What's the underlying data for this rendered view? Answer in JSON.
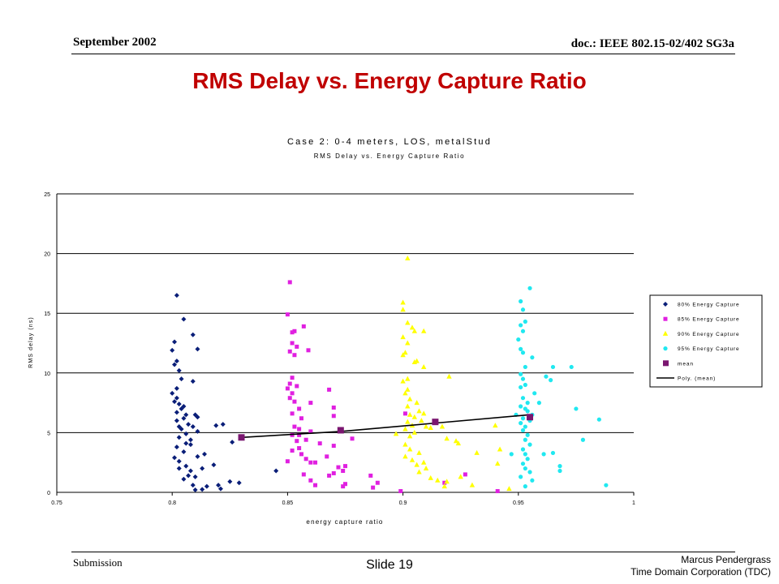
{
  "header": {
    "date": "September 2002",
    "doc": "doc.: IEEE 802.15-02/402 SG3a"
  },
  "slide_title": "RMS Delay vs. Energy Capture Ratio",
  "footer": {
    "left": "Submission",
    "center": "Slide 19",
    "author": "Marcus Pendergrass",
    "org": "Time Domain Corporation (TDC)"
  },
  "chart_data": {
    "type": "scatter",
    "title": "Case 2: 0-4 meters, LOS, metalStud",
    "subtitle": "RMS Delay vs. Energy Capture Ratio",
    "xlabel": "energy capture ratio",
    "ylabel": "RMS delay (ns)",
    "xlim": [
      0.75,
      1
    ],
    "ylim": [
      0,
      25
    ],
    "x_ticks": [
      "0.75",
      "0.8",
      "0.85",
      "0.9",
      "0.95",
      "1"
    ],
    "y_ticks": [
      "0",
      "5",
      "10",
      "15",
      "20",
      "25"
    ],
    "grid": "horizontal",
    "legend_position": "right",
    "series": [
      {
        "name": "80% Energy Capture",
        "marker": "diamond",
        "color": "#0a1e78",
        "points": [
          [
            0.802,
            16.5
          ],
          [
            0.805,
            14.5
          ],
          [
            0.809,
            13.2
          ],
          [
            0.811,
            12.0
          ],
          [
            0.801,
            12.6
          ],
          [
            0.8,
            11.9
          ],
          [
            0.802,
            11.0
          ],
          [
            0.801,
            10.7
          ],
          [
            0.803,
            10.2
          ],
          [
            0.804,
            9.5
          ],
          [
            0.809,
            9.3
          ],
          [
            0.802,
            8.7
          ],
          [
            0.8,
            8.3
          ],
          [
            0.802,
            7.9
          ],
          [
            0.801,
            7.6
          ],
          [
            0.803,
            7.4
          ],
          [
            0.805,
            7.2
          ],
          [
            0.804,
            7.0
          ],
          [
            0.802,
            6.7
          ],
          [
            0.806,
            6.5
          ],
          [
            0.81,
            6.5
          ],
          [
            0.805,
            6.2
          ],
          [
            0.802,
            6.0
          ],
          [
            0.807,
            5.7
          ],
          [
            0.811,
            6.3
          ],
          [
            0.803,
            5.5
          ],
          [
            0.804,
            5.3
          ],
          [
            0.809,
            5.5
          ],
          [
            0.811,
            5.1
          ],
          [
            0.819,
            5.6
          ],
          [
            0.822,
            5.7
          ],
          [
            0.806,
            4.9
          ],
          [
            0.803,
            4.6
          ],
          [
            0.808,
            4.4
          ],
          [
            0.806,
            4.1
          ],
          [
            0.802,
            3.8
          ],
          [
            0.805,
            3.4
          ],
          [
            0.801,
            2.9
          ],
          [
            0.803,
            2.6
          ],
          [
            0.811,
            3.0
          ],
          [
            0.814,
            3.2
          ],
          [
            0.806,
            2.2
          ],
          [
            0.808,
            1.8
          ],
          [
            0.813,
            2.0
          ],
          [
            0.807,
            1.4
          ],
          [
            0.805,
            1.1
          ],
          [
            0.81,
            1.3
          ],
          [
            0.818,
            2.3
          ],
          [
            0.826,
            4.2
          ],
          [
            0.825,
            0.9
          ],
          [
            0.829,
            0.8
          ],
          [
            0.82,
            0.6
          ],
          [
            0.813,
            0.25
          ],
          [
            0.821,
            0.3
          ],
          [
            0.81,
            0.2
          ],
          [
            0.803,
            2.0
          ],
          [
            0.809,
            0.6
          ],
          [
            0.815,
            0.5
          ],
          [
            0.808,
            4.0
          ],
          [
            0.845,
            1.8
          ]
        ]
      },
      {
        "name": "85% Energy Capture",
        "marker": "square",
        "color": "#e020e0",
        "points": [
          [
            0.851,
            17.6
          ],
          [
            0.85,
            14.9
          ],
          [
            0.852,
            13.4
          ],
          [
            0.853,
            13.5
          ],
          [
            0.857,
            13.9
          ],
          [
            0.852,
            12.5
          ],
          [
            0.854,
            12.2
          ],
          [
            0.851,
            11.8
          ],
          [
            0.853,
            11.5
          ],
          [
            0.859,
            11.9
          ],
          [
            0.852,
            9.6
          ],
          [
            0.851,
            9.1
          ],
          [
            0.854,
            8.9
          ],
          [
            0.85,
            8.7
          ],
          [
            0.852,
            8.3
          ],
          [
            0.851,
            7.9
          ],
          [
            0.853,
            7.6
          ],
          [
            0.86,
            7.5
          ],
          [
            0.855,
            7.0
          ],
          [
            0.868,
            8.6
          ],
          [
            0.87,
            7.1
          ],
          [
            0.852,
            6.6
          ],
          [
            0.856,
            6.2
          ],
          [
            0.87,
            6.4
          ],
          [
            0.853,
            5.5
          ],
          [
            0.855,
            5.3
          ],
          [
            0.86,
            5.1
          ],
          [
            0.873,
            5.2
          ],
          [
            0.878,
            4.5
          ],
          [
            0.852,
            4.8
          ],
          [
            0.854,
            4.3
          ],
          [
            0.858,
            4.4
          ],
          [
            0.864,
            4.1
          ],
          [
            0.87,
            3.9
          ],
          [
            0.855,
            3.7
          ],
          [
            0.852,
            3.5
          ],
          [
            0.856,
            3.2
          ],
          [
            0.858,
            2.8
          ],
          [
            0.86,
            2.5
          ],
          [
            0.867,
            3.0
          ],
          [
            0.862,
            2.5
          ],
          [
            0.875,
            2.2
          ],
          [
            0.874,
            1.8
          ],
          [
            0.87,
            1.6
          ],
          [
            0.868,
            1.4
          ],
          [
            0.857,
            1.5
          ],
          [
            0.86,
            1.0
          ],
          [
            0.862,
            0.6
          ],
          [
            0.874,
            0.5
          ],
          [
            0.886,
            1.4
          ],
          [
            0.889,
            0.8
          ],
          [
            0.887,
            0.4
          ],
          [
            0.85,
            2.6
          ],
          [
            0.855,
            4.8
          ],
          [
            0.872,
            2.1
          ],
          [
            0.875,
            0.7
          ],
          [
            0.899,
            0.1
          ],
          [
            0.901,
            6.6
          ],
          [
            0.918,
            0.8
          ],
          [
            0.927,
            1.5
          ],
          [
            0.941,
            0.1
          ]
        ]
      },
      {
        "name": "90% Energy Capture",
        "marker": "triangle",
        "color": "#ffff00",
        "points": [
          [
            0.902,
            19.6
          ],
          [
            0.9,
            15.9
          ],
          [
            0.9,
            15.3
          ],
          [
            0.902,
            14.2
          ],
          [
            0.904,
            13.8
          ],
          [
            0.905,
            13.5
          ],
          [
            0.909,
            13.5
          ],
          [
            0.9,
            13.0
          ],
          [
            0.902,
            12.5
          ],
          [
            0.901,
            11.7
          ],
          [
            0.9,
            11.5
          ],
          [
            0.906,
            11.0
          ],
          [
            0.905,
            10.9
          ],
          [
            0.909,
            10.5
          ],
          [
            0.902,
            9.5
          ],
          [
            0.9,
            9.3
          ],
          [
            0.902,
            8.6
          ],
          [
            0.901,
            8.3
          ],
          [
            0.903,
            7.8
          ],
          [
            0.906,
            7.5
          ],
          [
            0.902,
            7.2
          ],
          [
            0.907,
            6.8
          ],
          [
            0.903,
            6.5
          ],
          [
            0.905,
            6.3
          ],
          [
            0.908,
            6.0
          ],
          [
            0.902,
            5.9
          ],
          [
            0.904,
            5.6
          ],
          [
            0.91,
            5.5
          ],
          [
            0.912,
            5.4
          ],
          [
            0.917,
            5.5
          ],
          [
            0.901,
            5.3
          ],
          [
            0.905,
            5.0
          ],
          [
            0.897,
            4.9
          ],
          [
            0.903,
            4.7
          ],
          [
            0.919,
            4.5
          ],
          [
            0.923,
            4.3
          ],
          [
            0.924,
            4.1
          ],
          [
            0.901,
            4.0
          ],
          [
            0.903,
            3.6
          ],
          [
            0.907,
            3.3
          ],
          [
            0.932,
            3.3
          ],
          [
            0.901,
            3.0
          ],
          [
            0.904,
            2.7
          ],
          [
            0.909,
            2.5
          ],
          [
            0.906,
            2.3
          ],
          [
            0.91,
            2.0
          ],
          [
            0.907,
            1.7
          ],
          [
            0.912,
            1.2
          ],
          [
            0.915,
            1.0
          ],
          [
            0.919,
            0.9
          ],
          [
            0.918,
            0.5
          ],
          [
            0.925,
            1.3
          ],
          [
            0.93,
            0.6
          ],
          [
            0.94,
            5.6
          ],
          [
            0.942,
            3.6
          ],
          [
            0.941,
            2.4
          ],
          [
            0.946,
            0.3
          ],
          [
            0.92,
            9.7
          ],
          [
            0.909,
            6.6
          ]
        ]
      },
      {
        "name": "95% Energy Capture",
        "marker": "circle",
        "color": "#20e8f0",
        "points": [
          [
            0.955,
            17.1
          ],
          [
            0.951,
            16.0
          ],
          [
            0.952,
            15.3
          ],
          [
            0.951,
            14.0
          ],
          [
            0.953,
            14.3
          ],
          [
            0.952,
            13.5
          ],
          [
            0.95,
            12.8
          ],
          [
            0.951,
            12.0
          ],
          [
            0.952,
            11.7
          ],
          [
            0.956,
            11.3
          ],
          [
            0.953,
            10.5
          ],
          [
            0.951,
            9.9
          ],
          [
            0.952,
            9.5
          ],
          [
            0.962,
            9.7
          ],
          [
            0.964,
            9.4
          ],
          [
            0.953,
            9.0
          ],
          [
            0.951,
            8.8
          ],
          [
            0.957,
            8.3
          ],
          [
            0.952,
            7.9
          ],
          [
            0.954,
            7.5
          ],
          [
            0.951,
            7.2
          ],
          [
            0.953,
            7.0
          ],
          [
            0.954,
            6.8
          ],
          [
            0.956,
            6.5
          ],
          [
            0.959,
            7.5
          ],
          [
            0.952,
            6.2
          ],
          [
            0.955,
            6.0
          ],
          [
            0.951,
            5.8
          ],
          [
            0.953,
            5.5
          ],
          [
            0.952,
            5.2
          ],
          [
            0.954,
            4.8
          ],
          [
            0.953,
            4.4
          ],
          [
            0.955,
            4.0
          ],
          [
            0.952,
            3.6
          ],
          [
            0.953,
            3.2
          ],
          [
            0.954,
            2.8
          ],
          [
            0.952,
            2.4
          ],
          [
            0.953,
            2.0
          ],
          [
            0.955,
            1.7
          ],
          [
            0.951,
            1.3
          ],
          [
            0.956,
            1.0
          ],
          [
            0.953,
            0.5
          ],
          [
            0.961,
            3.2
          ],
          [
            0.965,
            3.3
          ],
          [
            0.968,
            2.2
          ],
          [
            0.968,
            1.8
          ],
          [
            0.965,
            10.5
          ],
          [
            0.973,
            10.5
          ],
          [
            0.975,
            7.0
          ],
          [
            0.978,
            4.4
          ],
          [
            0.985,
            6.1
          ],
          [
            0.988,
            0.6
          ],
          [
            0.947,
            3.2
          ],
          [
            0.949,
            6.5
          ]
        ]
      },
      {
        "name": "mean",
        "marker": "big-square",
        "color": "#7a1670",
        "points": [
          [
            0.83,
            4.6
          ],
          [
            0.873,
            5.2
          ],
          [
            0.914,
            5.9
          ],
          [
            0.955,
            6.3
          ]
        ]
      }
    ],
    "fit": {
      "name": "Poly. (mean)",
      "color": "#000000",
      "points": [
        [
          0.83,
          4.6
        ],
        [
          0.873,
          5.1
        ],
        [
          0.914,
          5.8
        ],
        [
          0.955,
          6.5
        ]
      ]
    }
  }
}
